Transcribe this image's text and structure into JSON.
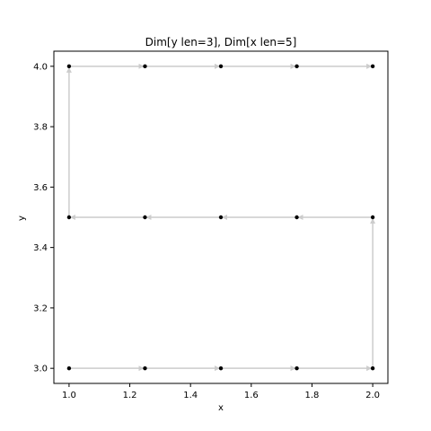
{
  "chart_data": {
    "type": "scatter",
    "title": "Dim[y len=3], Dim[x len=5]",
    "xlabel": "x",
    "ylabel": "y",
    "xlim": [
      0.95,
      2.05
    ],
    "ylim": [
      2.95,
      4.05
    ],
    "xticks": [
      1.0,
      1.2,
      1.4,
      1.6,
      1.8,
      2.0
    ],
    "xtick_labels": [
      "1.0",
      "1.2",
      "1.4",
      "1.6",
      "1.8",
      "2.0"
    ],
    "yticks": [
      3.0,
      3.2,
      3.4,
      3.6,
      3.8,
      4.0
    ],
    "ytick_labels": [
      "3.0",
      "3.2",
      "3.4",
      "3.6",
      "3.8",
      "4.0"
    ],
    "grid": false,
    "points": {
      "x": [
        1.0,
        1.25,
        1.5,
        1.75,
        2.0,
        2.0,
        1.75,
        1.5,
        1.25,
        1.0,
        1.0,
        1.25,
        1.5,
        1.75,
        2.0
      ],
      "y": [
        3.0,
        3.0,
        3.0,
        3.0,
        3.0,
        3.5,
        3.5,
        3.5,
        3.5,
        3.5,
        4.0,
        4.0,
        4.0,
        4.0,
        4.0
      ],
      "color": "#000000"
    },
    "path": {
      "x": [
        1.0,
        1.25,
        1.5,
        1.75,
        2.0,
        2.0,
        1.75,
        1.5,
        1.25,
        1.0,
        1.0,
        1.25,
        1.5,
        1.75,
        2.0
      ],
      "y": [
        3.0,
        3.0,
        3.0,
        3.0,
        3.0,
        3.5,
        3.5,
        3.5,
        3.5,
        3.5,
        4.0,
        4.0,
        4.0,
        4.0,
        4.0
      ],
      "color": "#cccccc",
      "arrows": true
    }
  }
}
